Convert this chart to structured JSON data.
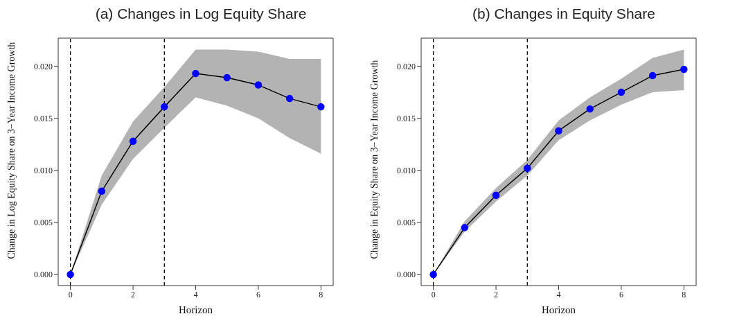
{
  "chart_data": [
    {
      "type": "line",
      "title": "(a) Changes in Log Equity Share",
      "xlabel": "Horizon",
      "ylabel": "Change in Log Equity Share on 3−Year Income Growth",
      "x": [
        0,
        1,
        2,
        3,
        4,
        5,
        6,
        7,
        8
      ],
      "series": [
        {
          "color": "#0000ff",
          "values": [
            0,
            0.008,
            0.0128,
            0.0161,
            0.0193,
            0.0189,
            0.0182,
            0.0169,
            0.0161
          ],
          "lower": [
            0,
            0.0067,
            0.0111,
            0.0141,
            0.017,
            0.0162,
            0.015,
            0.0131,
            0.0116
          ],
          "upper": [
            0,
            0.0095,
            0.0147,
            0.018,
            0.0216,
            0.0216,
            0.0214,
            0.0207,
            0.0207
          ]
        }
      ],
      "xlim": [
        -0.39,
        8.39
      ],
      "xticks": [
        0,
        2,
        4,
        6,
        8
      ],
      "ylim": [
        -0.00107,
        0.0227
      ],
      "yticks": [
        {
          "value": 0,
          "label": "0.000"
        },
        {
          "value": 0.005,
          "label": "0.005"
        },
        {
          "value": 0.01,
          "label": "0.010"
        },
        {
          "value": 0.015,
          "label": "0.015"
        },
        {
          "value": 0.02,
          "label": "0.020"
        }
      ],
      "ref_lines": [
        {
          "axis": "x",
          "value": 0,
          "color": "#000000",
          "line_style": "dashed"
        },
        {
          "axis": "x",
          "value": 3,
          "color": "#000000",
          "line_style": "dashed"
        }
      ],
      "marker": "circle",
      "line_style": "solid",
      "grid": false,
      "legend": false
    },
    {
      "type": "line",
      "title": "(b) Changes in Equity Share",
      "xlabel": "Horizon",
      "ylabel": "Change in Equity Share on 3−Year Income Growth",
      "x": [
        0,
        1,
        2,
        3,
        4,
        5,
        6,
        7,
        8
      ],
      "series": [
        {
          "color": "#0000ff",
          "values": [
            0,
            0.0045,
            0.0076,
            0.0102,
            0.0138,
            0.0159,
            0.0175,
            0.0191,
            0.0197
          ],
          "lower": [
            0,
            0.0041,
            0.007,
            0.0095,
            0.0129,
            0.0148,
            0.0163,
            0.0175,
            0.0177
          ],
          "upper": [
            0,
            0.0051,
            0.0083,
            0.011,
            0.0148,
            0.017,
            0.0188,
            0.0208,
            0.0216
          ]
        }
      ],
      "xlim": [
        -0.39,
        8.39
      ],
      "xticks": [
        0,
        2,
        4,
        6,
        8
      ],
      "ylim": [
        -0.00107,
        0.0227
      ],
      "yticks": [
        {
          "value": 0,
          "label": "0.000"
        },
        {
          "value": 0.005,
          "label": "0.005"
        },
        {
          "value": 0.01,
          "label": "0.010"
        },
        {
          "value": 0.015,
          "label": "0.015"
        },
        {
          "value": 0.02,
          "label": "0.020"
        }
      ],
      "ref_lines": [
        {
          "axis": "x",
          "value": 0,
          "color": "#000000",
          "line_style": "dashed"
        },
        {
          "axis": "x",
          "value": 3,
          "color": "#000000",
          "line_style": "dashed"
        }
      ],
      "marker": "circle",
      "line_style": "solid",
      "grid": false,
      "legend": false
    }
  ]
}
